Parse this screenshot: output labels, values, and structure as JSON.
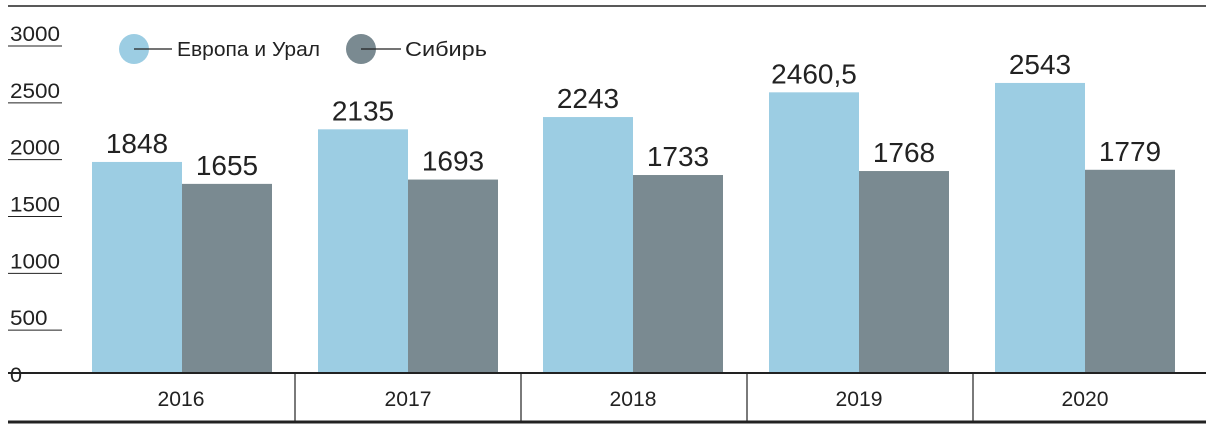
{
  "chart_data": {
    "type": "bar",
    "categories": [
      "2016",
      "2017",
      "2018",
      "2019",
      "2020"
    ],
    "series": [
      {
        "name": "Европа и Урал",
        "color": "#9ccde3",
        "values": [
          1848,
          2135,
          2243,
          2460.5,
          2543
        ],
        "labels": [
          "1848",
          "2135",
          "2243",
          "2460,5",
          "2543"
        ]
      },
      {
        "name": "Сибирь",
        "color": "#7a8a91",
        "values": [
          1655,
          1693,
          1733,
          1768,
          1779
        ],
        "labels": [
          "1655",
          "1693",
          "1733",
          "1768",
          "1779"
        ]
      }
    ],
    "y_ticks": [
      "0",
      "500",
      "1000",
      "1500",
      "2000",
      "2500",
      "3000"
    ],
    "ylim": [
      0,
      3000
    ],
    "grid": false,
    "legend_position": "top-left"
  }
}
